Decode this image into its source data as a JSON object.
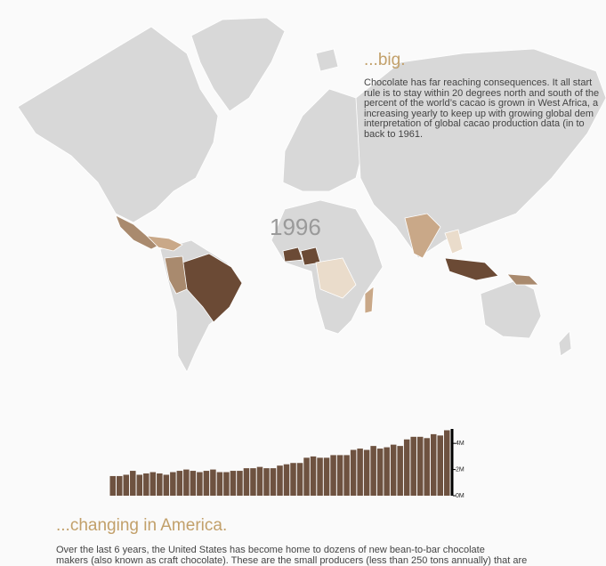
{
  "map": {
    "year": "1996"
  },
  "section_big": {
    "heading": "...big.",
    "lines": [
      "Chocolate has far reaching consequences. It all start",
      "rule is to stay within 20 degrees north and south of the",
      "percent of the world’s cacao is grown in West Africa, a",
      "increasing yearly to keep up with growing global dem",
      "interpretation of global cacao production data (in to",
      "back to 1961."
    ]
  },
  "chart_data": {
    "type": "bar",
    "values": [
      1.5,
      1.5,
      1.6,
      1.9,
      1.6,
      1.7,
      1.8,
      1.7,
      1.6,
      1.8,
      1.9,
      2.0,
      1.9,
      1.8,
      1.9,
      2.0,
      1.8,
      1.8,
      1.9,
      1.9,
      2.1,
      2.1,
      2.2,
      2.1,
      2.1,
      2.3,
      2.4,
      2.5,
      2.5,
      2.9,
      3.0,
      2.9,
      2.9,
      3.1,
      3.1,
      3.1,
      3.5,
      3.6,
      3.5,
      3.8,
      3.6,
      3.7,
      3.9,
      3.8,
      4.3,
      4.5,
      4.5,
      4.4,
      4.7,
      4.6,
      5.0
    ],
    "color": "#6e5240",
    "ylim": [
      0,
      5.1
    ],
    "yticks": [
      {
        "value": 0,
        "label": "0M"
      },
      {
        "value": 2,
        "label": "2M"
      },
      {
        "value": 4,
        "label": "4M"
      }
    ]
  },
  "section_america": {
    "heading": "...changing in America.",
    "lines": [
      "Over the last 6 years, the United States has become home to dozens of new bean-to-bar chocolate",
      "makers (also known as craft chocolate). These are the small producers (less than 250 tons annually) that are"
    ]
  }
}
